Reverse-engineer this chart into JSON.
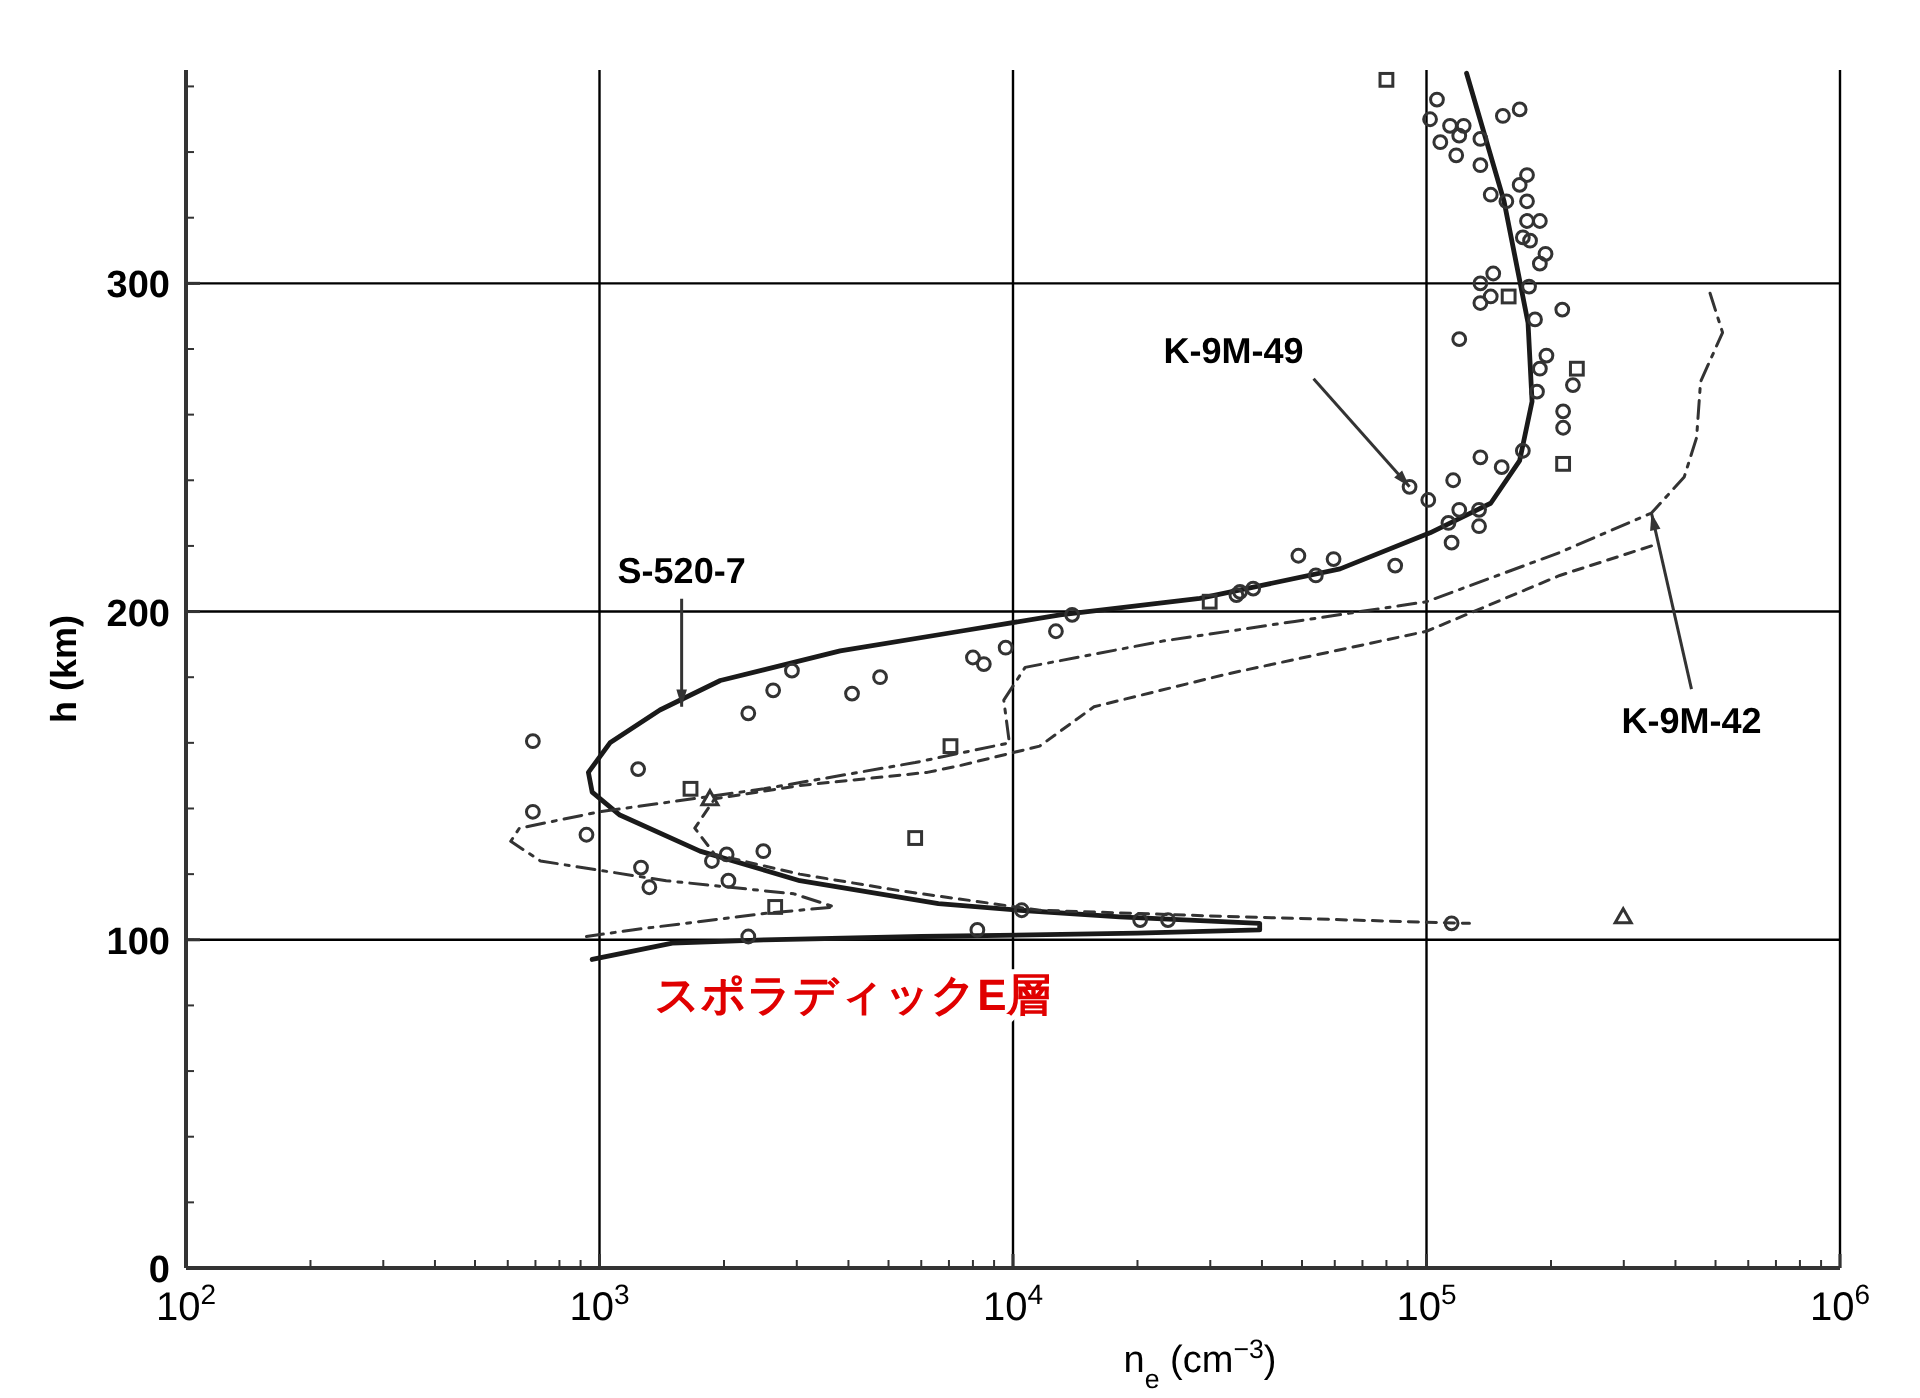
{
  "chart_data": {
    "type": "line",
    "xlabel": "n$_{e}$ (cm$^{−3}$)",
    "ylabel": "h (km)",
    "log": "x",
    "grid": true,
    "xlim": [
      100,
      1000000
    ],
    "xticks": [
      {
        "value": 100,
        "label": "10$^{2}$"
      },
      {
        "value": 1000,
        "label": "10$^{3}$"
      },
      {
        "value": 10000,
        "label": "10$^{4}$"
      },
      {
        "value": 100000,
        "label": "10$^{5}$"
      },
      {
        "value": 1000000,
        "label": "10$^{6}$"
      }
    ],
    "ylim": [
      0,
      365
    ],
    "yticks": [
      0,
      100,
      200,
      300
    ],
    "series": [
      {
        "type": "line",
        "line_style": "solid",
        "color": "#1a1a1a",
        "x": [
          125000,
          154000,
          176000,
          180000,
          168000,
          143000,
          102000,
          61800,
          28300,
          13000,
          7450,
          3820,
          1960,
          1400,
          1060,
          940,
          960,
          1120,
          1750,
          3050,
          6600,
          10400,
          18100,
          39500,
          39500,
          20000,
          6000,
          2500,
          1500,
          960
        ],
        "values": [
          364,
          325,
          288,
          264,
          246,
          233,
          224,
          213,
          204,
          199,
          194,
          188,
          179,
          170,
          160,
          151,
          145,
          138,
          127,
          118,
          111,
          109,
          107,
          105,
          103,
          102,
          101,
          100,
          99,
          94
        ]
      },
      {
        "type": "line",
        "line_style": "dashdot",
        "color": "#333333",
        "x": [
          485000,
          520000,
          460000,
          450000,
          420000,
          350000,
          210000,
          100000,
          48000,
          23000,
          10700,
          9500,
          9800,
          5800,
          2500,
          1000,
          640,
          610,
          720,
          1450,
          2950,
          3700,
          2500,
          1200,
          930
        ],
        "values": [
          297,
          285,
          270,
          253,
          241,
          230,
          218,
          203,
          197,
          191,
          183,
          173,
          160,
          154,
          146,
          139,
          134,
          130,
          124,
          118,
          114,
          110,
          108,
          103,
          101
        ]
      },
      {
        "type": "line",
        "line_style": "dashed",
        "color": "#333333",
        "x": [
          350000,
          210000,
          100000,
          33000,
          15700,
          11600,
          7400,
          6200,
          3050,
          1900,
          1700,
          1900,
          3050,
          5300,
          11600,
          35000,
          127000
        ],
        "values": [
          220,
          211,
          194,
          181,
          171,
          159,
          153,
          151,
          147,
          143,
          134,
          126,
          120,
          115,
          109,
          107,
          105
        ]
      },
      {
        "type": "scatter",
        "marker": "circle",
        "color": "#333333",
        "x": [
          106000,
          102000,
          114000,
          120000,
          123000,
          108000,
          135000,
          135000,
          118000,
          153000,
          168000,
          175000,
          168000,
          143000,
          156000,
          175000,
          175000,
          171000,
          188000,
          178000,
          188000,
          194000,
          145000,
          135000,
          143000,
          135000,
          177000,
          183000,
          213000,
          120000,
          195000,
          188000,
          226000,
          185000,
          214000,
          214000,
          171000,
          152000,
          135000,
          91000,
          101000,
          116000,
          120000,
          134000,
          113000,
          134000,
          115000,
          49000,
          59600,
          54000,
          84000,
          35400,
          38100,
          690,
          690,
          930,
          1240,
          1260,
          1320,
          1870,
          2030,
          2050,
          2490,
          2290,
          2290,
          2630,
          2920,
          4080,
          4770,
          8000,
          8500,
          9600,
          12700,
          13900,
          8200,
          10500,
          34700,
          20300,
          23700,
          115000
        ],
        "values": [
          356,
          350,
          348,
          345,
          348,
          343,
          344,
          336,
          339,
          351,
          353,
          333,
          330,
          327,
          325,
          325,
          319,
          314,
          319,
          313,
          306,
          309,
          303,
          300,
          296,
          294,
          299,
          289,
          292,
          283,
          278,
          274,
          269,
          267,
          261,
          256,
          249,
          244,
          247,
          238,
          234,
          240,
          231,
          231,
          227,
          226,
          221,
          217,
          216,
          211,
          214,
          206,
          207,
          160.5,
          139,
          132,
          152,
          122,
          116,
          124,
          126,
          118,
          127,
          101,
          169,
          176,
          182,
          175,
          180,
          186,
          184,
          189,
          194,
          199,
          103,
          109,
          205,
          106,
          106,
          105
        ]
      },
      {
        "type": "scatter",
        "marker": "square",
        "color": "#333333",
        "x": [
          80000,
          231000,
          158000,
          214000,
          1660,
          2660,
          7060,
          5800,
          29900
        ],
        "values": [
          362,
          274,
          296,
          245,
          146,
          110,
          159,
          131,
          203
        ]
      },
      {
        "type": "scatter",
        "marker": "triangle",
        "color": "#333333",
        "x": [
          1850,
          299000
        ],
        "values": [
          143,
          107
        ]
      }
    ],
    "annotations": [
      {
        "text": "S-520-7",
        "x": 1580,
        "y": 171
      },
      {
        "text": "K-9M-49",
        "x": 91000,
        "y": 238
      },
      {
        "text": "K-9M-42",
        "x": 350000,
        "y": 230
      },
      "スポラディックE層"
    ]
  }
}
